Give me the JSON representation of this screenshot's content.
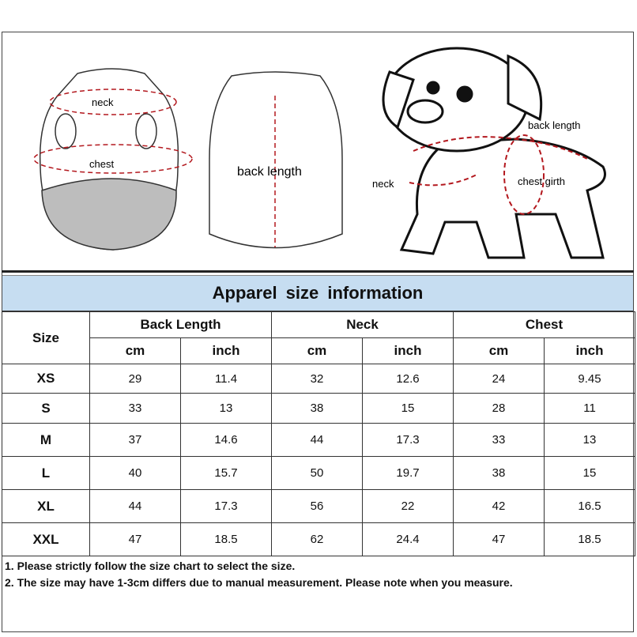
{
  "illustration": {
    "labels": {
      "neck": "neck",
      "chest": "chest",
      "back_length": "back length",
      "dog_back_length": "back length",
      "dog_neck": "neck",
      "dog_chest_girth": "chest girth"
    },
    "accent_color": "#b3181e"
  },
  "title": "Apparel size information",
  "table": {
    "size_header": "Size",
    "groups": [
      "Back Length",
      "Neck",
      "Chest"
    ],
    "units": [
      "cm",
      "inch",
      "cm",
      "inch",
      "cm",
      "inch"
    ],
    "rows": [
      {
        "size": "XS",
        "values": [
          "29",
          "11.4",
          "32",
          "12.6",
          "24",
          "9.45"
        ]
      },
      {
        "size": "S",
        "values": [
          "33",
          "13",
          "38",
          "15",
          "28",
          "11"
        ]
      },
      {
        "size": "M",
        "values": [
          "37",
          "14.6",
          "44",
          "17.3",
          "33",
          "13"
        ]
      },
      {
        "size": "L",
        "values": [
          "40",
          "15.7",
          "50",
          "19.7",
          "38",
          "15"
        ]
      },
      {
        "size": "XL",
        "values": [
          "44",
          "17.3",
          "56",
          "22",
          "42",
          "16.5"
        ]
      },
      {
        "size": "XXL",
        "values": [
          "47",
          "18.5",
          "62",
          "24.4",
          "47",
          "18.5"
        ]
      }
    ]
  },
  "notes": [
    "1. Please strictly follow the size chart  to select the size.",
    "2. The size may have 1-3cm differs due to manual measurement. Please note when you measure."
  ],
  "colors": {
    "title_bar": "#c6ddf1",
    "measure_line": "#b3181e",
    "vest_bottom": "#bdbdbd"
  }
}
